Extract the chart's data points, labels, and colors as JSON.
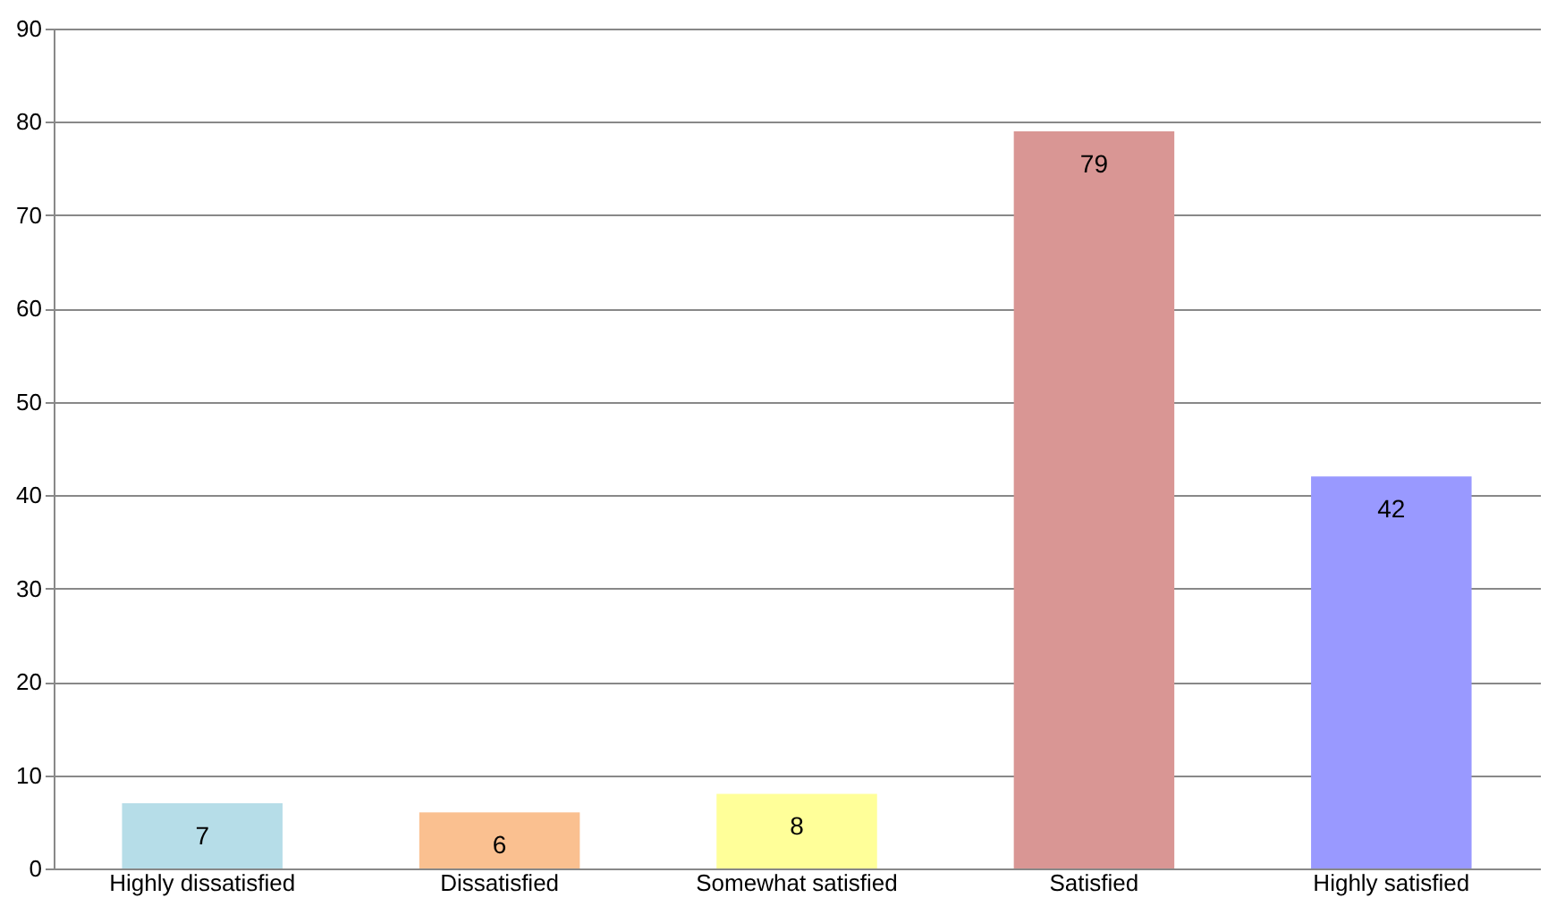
{
  "chart_data": {
    "type": "bar",
    "categories": [
      "Highly dissatisfied",
      "Dissatisfied",
      "Somewhat satisfied",
      "Satisfied",
      "Highly satisfied"
    ],
    "values": [
      7,
      6,
      8,
      79,
      42
    ],
    "colors": [
      "#b6dde8",
      "#fac090",
      "#ffff99",
      "#d99694",
      "#9999ff"
    ],
    "ylim": [
      0,
      90
    ],
    "yticks": [
      0,
      10,
      20,
      30,
      40,
      50,
      60,
      70,
      80,
      90
    ],
    "grid": "y",
    "data_labels": true
  }
}
